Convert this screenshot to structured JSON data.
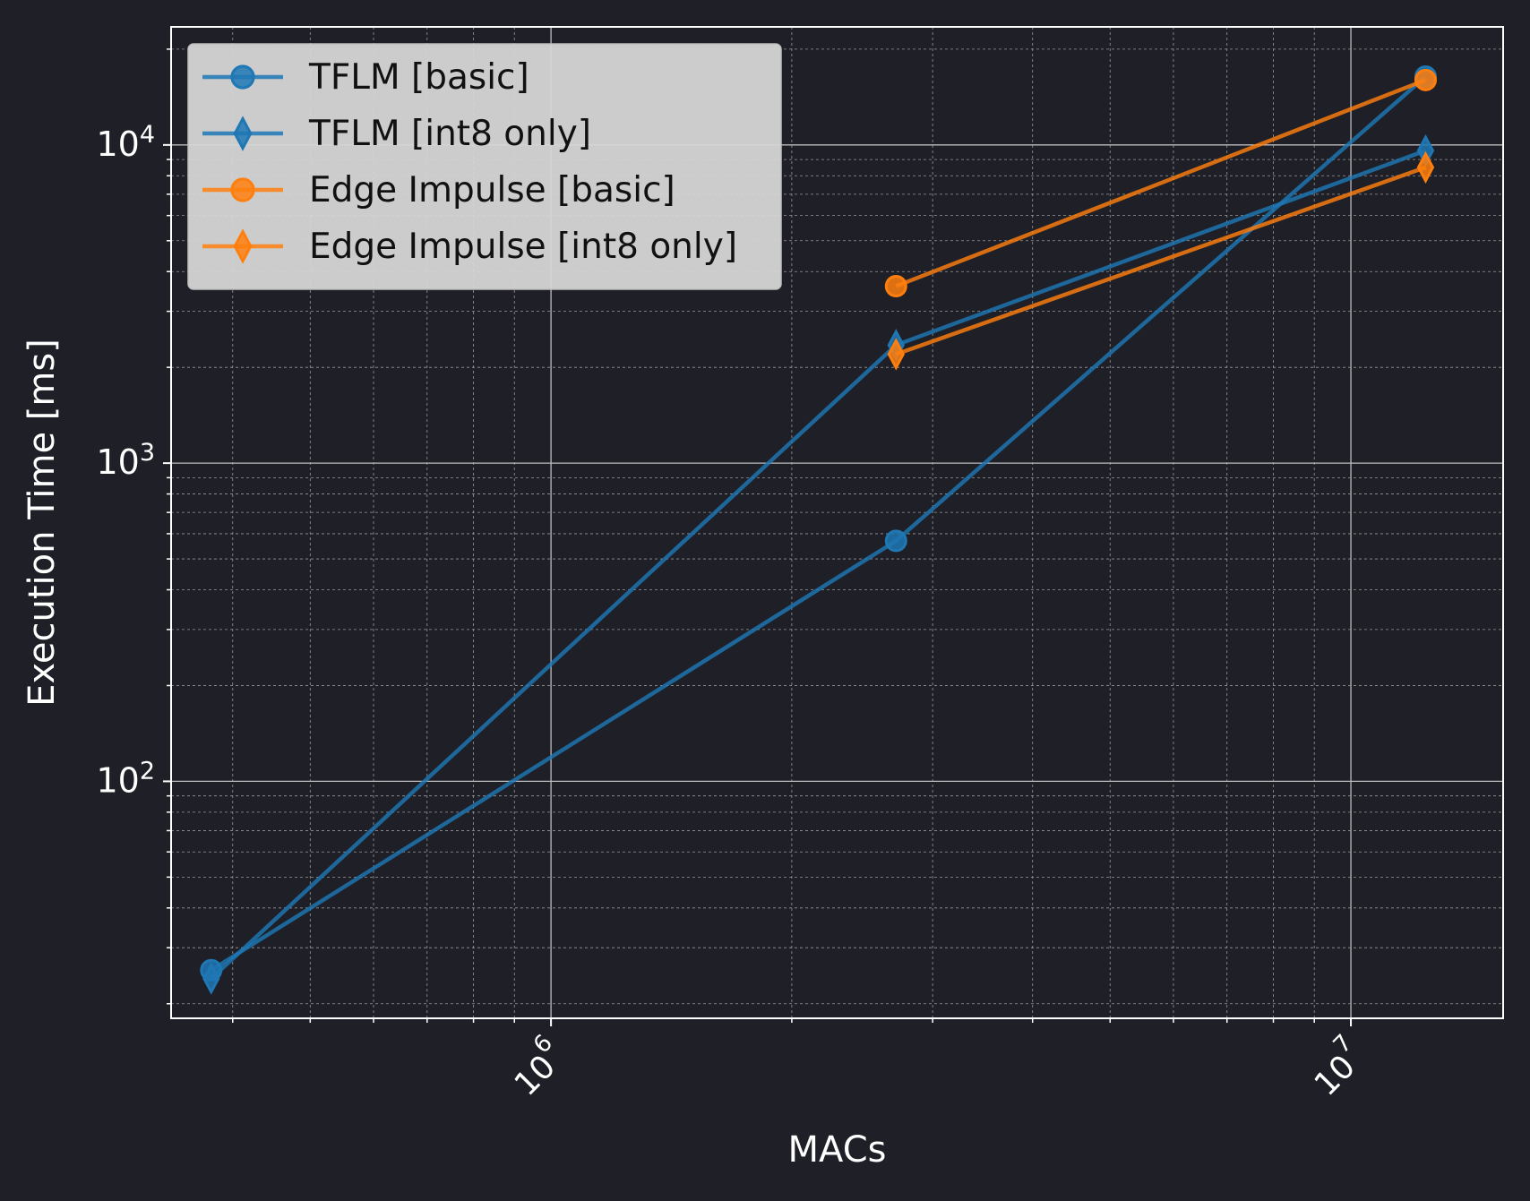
{
  "theme": {
    "background": "#1e1f27",
    "axes_color": "#ffffff",
    "grid_major_color": "#bdbdbd",
    "grid_minor_color": "#9a9a9a",
    "legend_bg": "#d6d6d6",
    "text_color": "#ffffff"
  },
  "chart_data": {
    "type": "line",
    "title": "",
    "xlabel": "MACs",
    "ylabel": "Execution Time [ms]",
    "xscale": "log",
    "yscale": "log",
    "xlim": [
      335000,
      15500000
    ],
    "ylim": [
      18,
      23500
    ],
    "x_ticks": [
      {
        "value": 1000000,
        "base": "10",
        "exp": "6"
      },
      {
        "value": 10000000,
        "base": "10",
        "exp": "7"
      }
    ],
    "y_ticks": [
      {
        "value": 100,
        "base": "10",
        "exp": "2"
      },
      {
        "value": 1000,
        "base": "10",
        "exp": "3"
      },
      {
        "value": 10000,
        "base": "10",
        "exp": "4"
      }
    ],
    "x_tick_rotation": "45",
    "grid": true,
    "minor_grid": true,
    "legend_position": "upper-left",
    "series": [
      {
        "name": "TFLM [basic]",
        "color": "#1f77b4",
        "marker": "circle",
        "points": [
          [
            376000,
            25.5
          ],
          [
            2700000,
            570
          ],
          [
            12400000,
            16400
          ]
        ]
      },
      {
        "name": "TFLM [int8 only]",
        "color": "#1f77b4",
        "marker": "thin_diamond",
        "points": [
          [
            376000,
            24
          ],
          [
            2700000,
            2350
          ],
          [
            12400000,
            9600
          ]
        ]
      },
      {
        "name": "Edge Impulse [basic]",
        "color": "#ff7f0e",
        "marker": "circle",
        "points": [
          [
            2700000,
            3600
          ],
          [
            12400000,
            16000
          ]
        ]
      },
      {
        "name": "Edge Impulse [int8 only]",
        "color": "#ff7f0e",
        "marker": "thin_diamond",
        "points": [
          [
            2700000,
            2200
          ],
          [
            12400000,
            8500
          ]
        ]
      }
    ]
  }
}
